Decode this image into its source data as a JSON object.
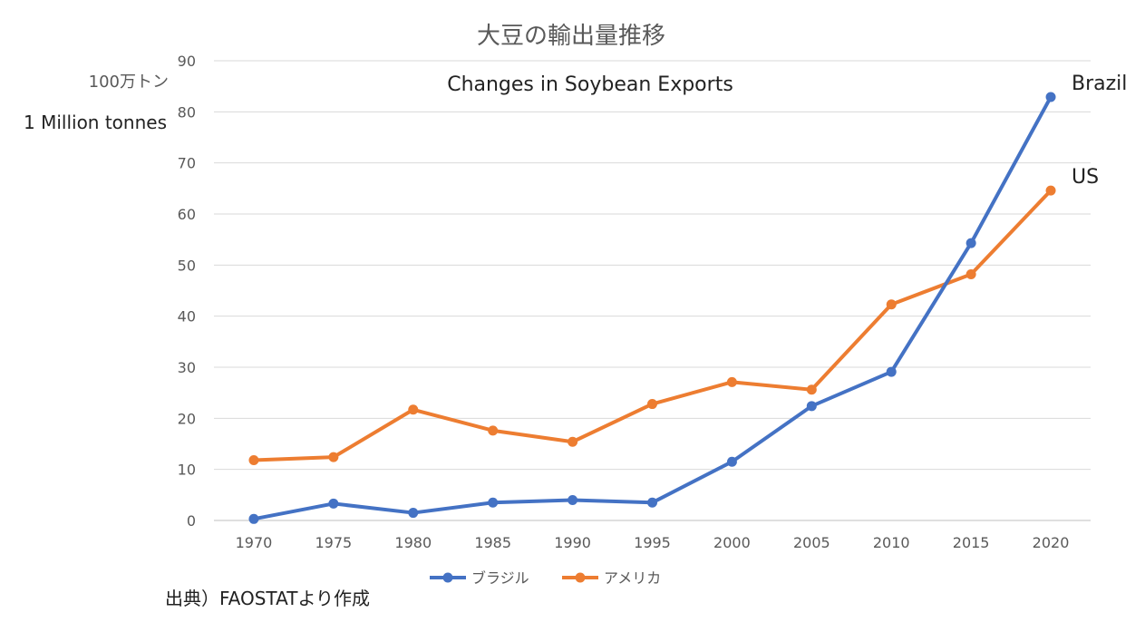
{
  "chart_data": {
    "type": "line",
    "title": "大豆の輸出量推移",
    "subtitle": "Changes in Soybean Exports",
    "unit_labels": [
      "100万トン",
      "1 Million tonnes"
    ],
    "source": "出典）FAOSTATより作成",
    "x": [
      "1970",
      "1975",
      "1980",
      "1985",
      "1990",
      "1995",
      "2000",
      "2005",
      "2010",
      "2015",
      "2020"
    ],
    "yticks": [
      "0",
      "10",
      "20",
      "30",
      "40",
      "50",
      "60",
      "70",
      "80",
      "90"
    ],
    "ylim": [
      0,
      90
    ],
    "grid": true,
    "legend_position": "bottom",
    "series": [
      {
        "name": "ブラジル",
        "end_label": "Brazil",
        "color": "#4472C4",
        "values": [
          0.3,
          3.3,
          1.5,
          3.5,
          4.0,
          3.5,
          11.5,
          22.4,
          29.1,
          54.3,
          82.9
        ]
      },
      {
        "name": "アメリカ",
        "end_label": "US",
        "color": "#ED7D31",
        "values": [
          11.8,
          12.4,
          21.7,
          17.6,
          15.4,
          22.8,
          27.1,
          25.6,
          42.3,
          48.2,
          64.6
        ]
      }
    ]
  }
}
